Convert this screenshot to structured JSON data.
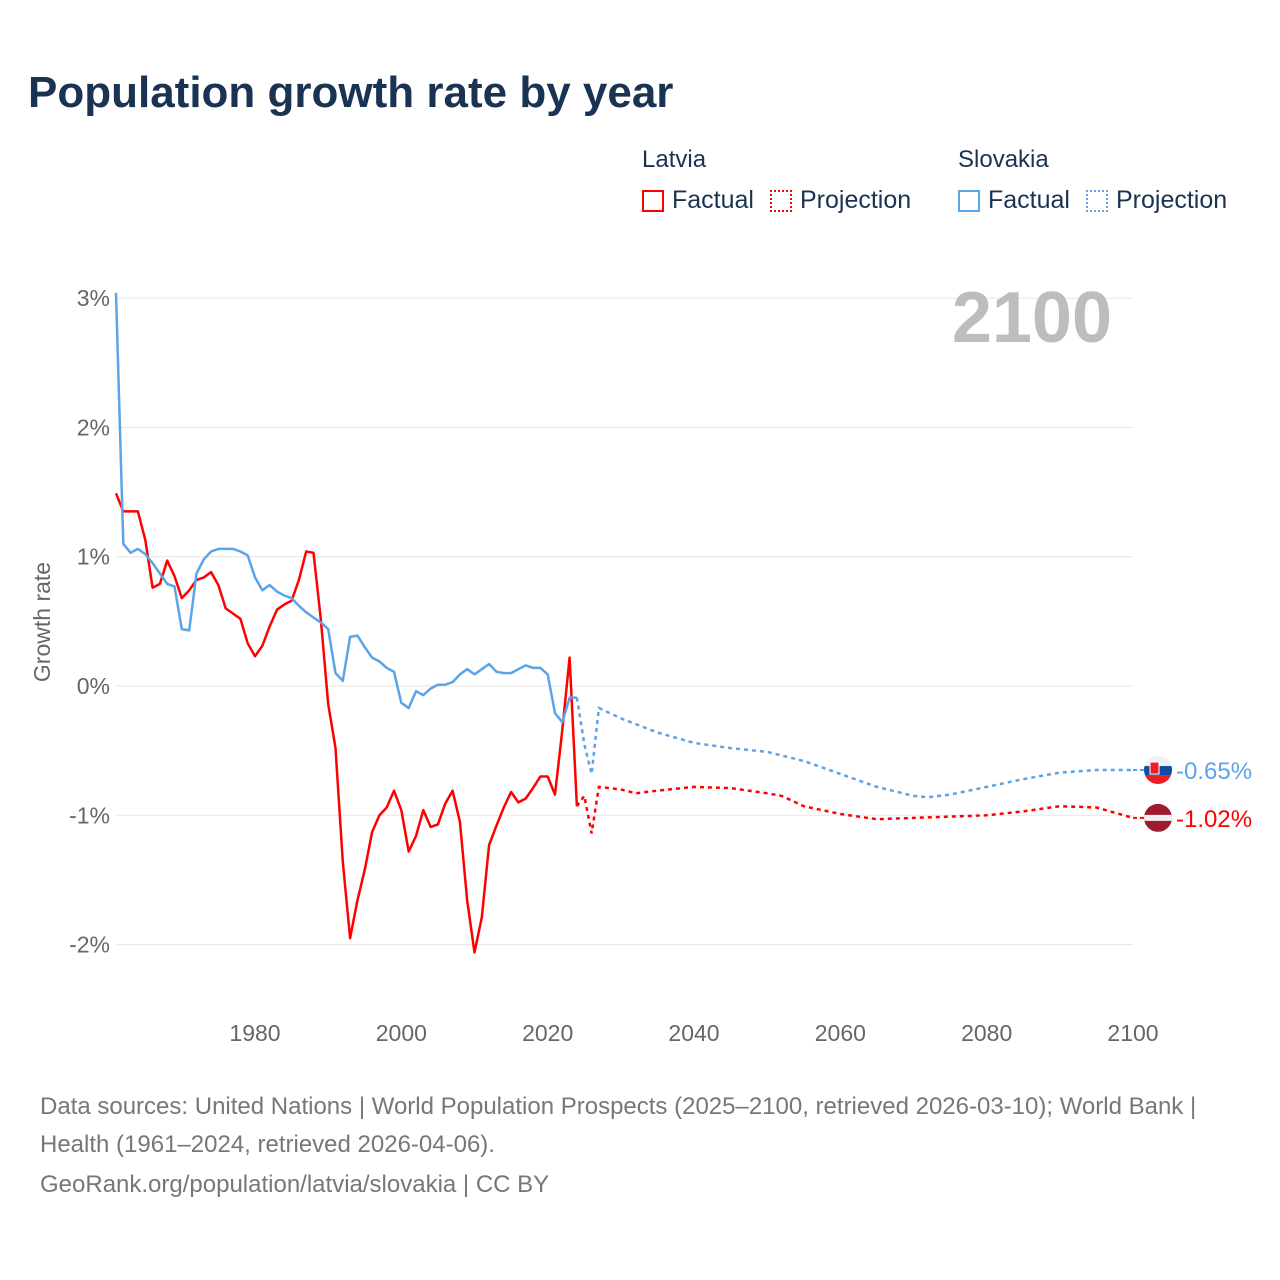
{
  "title": "Population growth rate by year",
  "legend": {
    "groups": [
      {
        "name": "Latvia",
        "items": [
          "Factual",
          "Projection"
        ]
      },
      {
        "name": "Slovakia",
        "items": [
          "Factual",
          "Projection"
        ]
      }
    ]
  },
  "year_label": "2100",
  "footer": {
    "sources": "Data sources: United Nations | World Population Prospects (2025–2100, retrieved 2026-03-10); World Bank | Health (1961–2024, retrieved 2026-04-06).",
    "credit": "GeoRank.org/population/latvia/slovakia | CC BY"
  },
  "chart_data": {
    "type": "line",
    "title": "Population growth rate by year",
    "xlabel": "",
    "ylabel": "Growth rate",
    "xlim": [
      1961,
      2100
    ],
    "ylim": [
      -2.5,
      3.1
    ],
    "xticks": [
      1980,
      2000,
      2020,
      2040,
      2060,
      2080,
      2100
    ],
    "yticks": [
      {
        "v": 3,
        "label": "3%"
      },
      {
        "v": 2,
        "label": "2%"
      },
      {
        "v": 1,
        "label": "1%"
      },
      {
        "v": 0,
        "label": "0%"
      },
      {
        "v": -1,
        "label": "-1%"
      },
      {
        "v": -2,
        "label": "-2%"
      }
    ],
    "grid": true,
    "legend_position": "top-right",
    "series": [
      {
        "name": "Latvia",
        "color": "#ff0000",
        "end_label": "-1.02%",
        "factual_start": 1961,
        "factual": [
          1.49,
          1.35,
          1.35,
          1.35,
          1.13,
          0.76,
          0.79,
          0.97,
          0.85,
          0.68,
          0.74,
          0.82,
          0.84,
          0.88,
          0.78,
          0.6,
          0.56,
          0.52,
          0.33,
          0.23,
          0.31,
          0.46,
          0.59,
          0.63,
          0.66,
          0.82,
          1.04,
          1.03,
          0.51,
          -0.14,
          -0.48,
          -1.36,
          -1.95,
          -1.66,
          -1.42,
          -1.13,
          -1.0,
          -0.94,
          -0.81,
          -0.96,
          -1.28,
          -1.16,
          -0.96,
          -1.09,
          -1.07,
          -0.91,
          -0.81,
          -1.05,
          -1.66,
          -2.06,
          -1.79,
          -1.23,
          -1.08,
          -0.94,
          -0.82,
          -0.9,
          -0.87,
          -0.79,
          -0.7,
          -0.7,
          -0.84,
          -0.34,
          0.22,
          -0.93
        ],
        "projection": [
          [
            2024,
            -0.93
          ],
          [
            2025,
            -0.85
          ],
          [
            2026,
            -1.14
          ],
          [
            2027,
            -0.78
          ],
          [
            2030,
            -0.8
          ],
          [
            2032,
            -0.83
          ],
          [
            2035,
            -0.81
          ],
          [
            2040,
            -0.78
          ],
          [
            2045,
            -0.79
          ],
          [
            2050,
            -0.83
          ],
          [
            2052,
            -0.85
          ],
          [
            2055,
            -0.93
          ],
          [
            2060,
            -0.99
          ],
          [
            2065,
            -1.03
          ],
          [
            2070,
            -1.02
          ],
          [
            2075,
            -1.01
          ],
          [
            2080,
            -1.0
          ],
          [
            2085,
            -0.97
          ],
          [
            2090,
            -0.93
          ],
          [
            2095,
            -0.94
          ],
          [
            2100,
            -1.02
          ]
        ]
      },
      {
        "name": "Slovakia",
        "color": "#5ba4e8",
        "end_label": "-0.65%",
        "factual_start": 1961,
        "factual": [
          3.04,
          1.1,
          1.03,
          1.06,
          1.02,
          0.95,
          0.87,
          0.79,
          0.77,
          0.44,
          0.43,
          0.87,
          0.98,
          1.04,
          1.06,
          1.06,
          1.06,
          1.04,
          1.01,
          0.84,
          0.74,
          0.78,
          0.73,
          0.7,
          0.68,
          0.62,
          0.57,
          0.53,
          0.49,
          0.44,
          0.1,
          0.04,
          0.38,
          0.39,
          0.3,
          0.22,
          0.19,
          0.14,
          0.11,
          -0.13,
          -0.17,
          -0.04,
          -0.07,
          -0.02,
          0.01,
          0.01,
          0.03,
          0.09,
          0.13,
          0.09,
          0.13,
          0.17,
          0.11,
          0.1,
          0.1,
          0.13,
          0.16,
          0.14,
          0.14,
          0.09,
          -0.21,
          -0.28,
          -0.09,
          -0.09
        ],
        "projection": [
          [
            2024,
            -0.09
          ],
          [
            2025,
            -0.45
          ],
          [
            2026,
            -0.68
          ],
          [
            2027,
            -0.17
          ],
          [
            2030,
            -0.25
          ],
          [
            2035,
            -0.36
          ],
          [
            2040,
            -0.44
          ],
          [
            2045,
            -0.48
          ],
          [
            2050,
            -0.51
          ],
          [
            2055,
            -0.58
          ],
          [
            2060,
            -0.68
          ],
          [
            2065,
            -0.78
          ],
          [
            2070,
            -0.85
          ],
          [
            2072,
            -0.86
          ],
          [
            2075,
            -0.84
          ],
          [
            2080,
            -0.78
          ],
          [
            2085,
            -0.72
          ],
          [
            2090,
            -0.67
          ],
          [
            2095,
            -0.65
          ],
          [
            2100,
            -0.65
          ]
        ]
      }
    ]
  }
}
